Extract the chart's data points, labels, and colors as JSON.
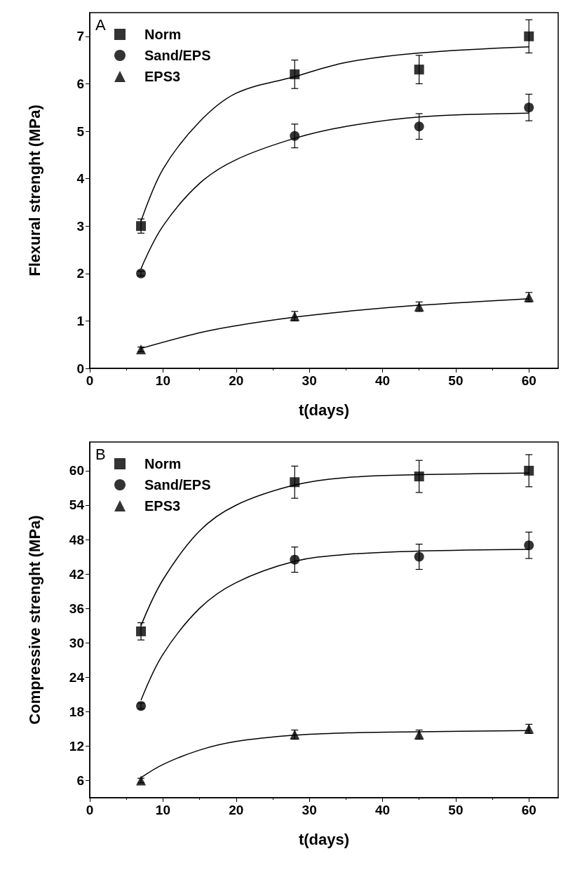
{
  "chart_data": [
    {
      "type": "scatter",
      "annotations": [
        "A"
      ],
      "xlabel": "t(days)",
      "ylabel": "Flexural strenght (MPa)",
      "xlim": [
        0,
        64
      ],
      "xticks": [
        0,
        10,
        20,
        30,
        40,
        50,
        60
      ],
      "ylim": [
        0,
        7.5
      ],
      "yticks": [
        0,
        1,
        2,
        3,
        4,
        5,
        6,
        7
      ],
      "grid": false,
      "legend": "top left",
      "series": [
        {
          "name": "Norm",
          "marker": "square",
          "color": "#000000",
          "x": [
            7,
            28,
            45,
            60
          ],
          "values": [
            3.0,
            6.2,
            6.3,
            7.0
          ],
          "errors": [
            0.15,
            0.3,
            0.3,
            0.35
          ]
        },
        {
          "name": "Sand/EPS",
          "marker": "circle",
          "color": "#000000",
          "x": [
            7,
            28,
            45,
            60
          ],
          "values": [
            2.0,
            4.9,
            5.1,
            5.5
          ],
          "errors": [
            0.05,
            0.25,
            0.27,
            0.28
          ]
        },
        {
          "name": "EPS3",
          "marker": "triangle",
          "color": "#000000",
          "x": [
            7,
            28,
            45,
            60
          ],
          "values": [
            0.4,
            1.1,
            1.3,
            1.5
          ],
          "errors": [
            0.05,
            0.1,
            0.1,
            0.1
          ]
        },
        {
          "type": "line",
          "marker": "none",
          "color": "#000000",
          "x": [
            7,
            10,
            15,
            20,
            28,
            35,
            45,
            60
          ],
          "values": [
            3.1,
            4.2,
            5.2,
            5.8,
            6.15,
            6.45,
            6.65,
            6.78
          ]
        },
        {
          "type": "line",
          "marker": "none",
          "color": "#000000",
          "x": [
            7,
            10,
            15,
            20,
            28,
            35,
            45,
            60
          ],
          "values": [
            2.1,
            3.0,
            3.9,
            4.4,
            4.85,
            5.1,
            5.3,
            5.38
          ]
        },
        {
          "type": "line",
          "marker": "none",
          "color": "#000000",
          "x": [
            7,
            15,
            20,
            28,
            35,
            45,
            60
          ],
          "values": [
            0.42,
            0.75,
            0.9,
            1.08,
            1.2,
            1.33,
            1.47
          ]
        }
      ]
    },
    {
      "type": "scatter",
      "annotations": [
        "B"
      ],
      "xlabel": "t(days)",
      "ylabel": "Compressive strenght (MPa)",
      "xlim": [
        0,
        64
      ],
      "xticks": [
        0,
        10,
        20,
        30,
        40,
        50,
        60
      ],
      "ylim": [
        3,
        65
      ],
      "yticks": [
        6,
        12,
        18,
        24,
        30,
        36,
        42,
        48,
        54,
        60
      ],
      "grid": false,
      "legend": "top left",
      "series": [
        {
          "name": "Norm",
          "marker": "square",
          "color": "#000000",
          "x": [
            7,
            28,
            45,
            60
          ],
          "values": [
            32,
            58,
            59,
            60
          ],
          "errors": [
            1.5,
            2.8,
            2.8,
            2.8
          ]
        },
        {
          "name": "Sand/EPS",
          "marker": "circle",
          "color": "#000000",
          "x": [
            7,
            28,
            45,
            60
          ],
          "values": [
            19,
            44.5,
            45,
            47
          ],
          "errors": [
            0.5,
            2.2,
            2.2,
            2.3
          ]
        },
        {
          "name": "EPS3",
          "marker": "triangle",
          "color": "#000000",
          "x": [
            7,
            28,
            45,
            60
          ],
          "values": [
            6,
            14,
            14,
            15
          ],
          "errors": [
            0.4,
            0.8,
            0.8,
            0.8
          ]
        },
        {
          "type": "line",
          "marker": "none",
          "color": "#000000",
          "x": [
            7,
            10,
            15,
            20,
            28,
            35,
            45,
            60
          ],
          "values": [
            33,
            41,
            49.5,
            54,
            57.5,
            58.8,
            59.3,
            59.6
          ]
        },
        {
          "type": "line",
          "marker": "none",
          "color": "#000000",
          "x": [
            7,
            10,
            15,
            20,
            28,
            35,
            45,
            60
          ],
          "values": [
            20,
            28,
            36,
            40.5,
            44.2,
            45.4,
            46,
            46.3
          ]
        },
        {
          "type": "line",
          "marker": "none",
          "color": "#000000",
          "x": [
            7,
            10,
            15,
            20,
            28,
            35,
            45,
            60
          ],
          "values": [
            6.5,
            8.8,
            11.3,
            12.8,
            13.9,
            14.3,
            14.5,
            14.7
          ]
        }
      ]
    }
  ]
}
